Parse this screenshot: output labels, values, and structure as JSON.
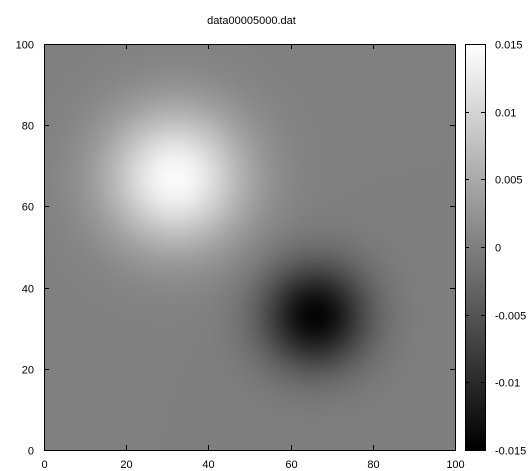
{
  "chart_data": {
    "type": "heatmap",
    "title": "data00005000.dat",
    "xlabel": "",
    "ylabel": "",
    "xlim": [
      0,
      100
    ],
    "ylim": [
      0,
      100
    ],
    "x_ticks": [
      0,
      20,
      40,
      60,
      80,
      100
    ],
    "y_ticks": [
      0,
      20,
      40,
      60,
      80,
      100
    ],
    "colormap": "gray",
    "colorbar": {
      "range": [
        -0.015,
        0.015
      ],
      "ticks": [
        -0.015,
        -0.01,
        -0.005,
        0,
        0.005,
        0.01,
        0.015
      ],
      "tick_labels": [
        "-0.015",
        "-0.01",
        "-0.005",
        "0",
        "0.005",
        "0.01",
        "0.015"
      ],
      "placement": "right"
    },
    "background_value": 0.0,
    "features": [
      {
        "kind": "maximum",
        "x": 32,
        "y": 67,
        "value": 0.0145,
        "radius": 12
      },
      {
        "kind": "minimum",
        "x": 66,
        "y": 33,
        "value": -0.0145,
        "radius": 9
      }
    ],
    "grid": false
  }
}
